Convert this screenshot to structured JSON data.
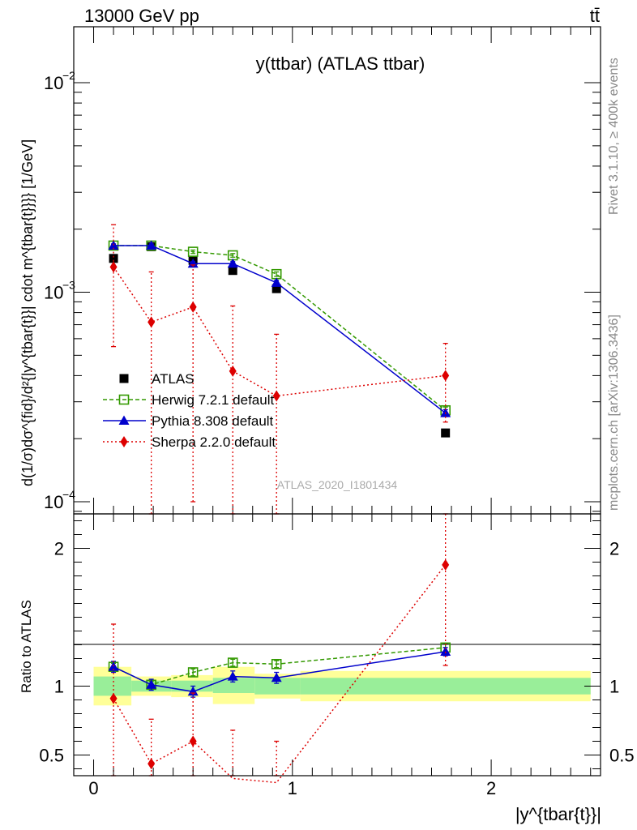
{
  "header": {
    "left": "13000 GeV pp",
    "right": "tt̄"
  },
  "side_labels": {
    "rivet": "Rivet 3.1.10, ≥ 400k events",
    "mcplots": "mcplots.cern.ch [arXiv:1306.3436]"
  },
  "chart_data": [
    {
      "type": "scatter",
      "title": "y(ttbar) (ATLAS ttbar)",
      "watermark": "ATLAS_2020_I1801434",
      "xlabel": "|y^{tbar{t}}|",
      "ylabel": "d(1/σ)dσ^{fid}/d²{|y^{tbar{t}}| cdot m^{tbar{t}}}} [1/GeV]",
      "yscale": "log",
      "xlim": [
        -0.1,
        2.55
      ],
      "ylim": [
        8.75e-05,
        0.0185
      ],
      "yticks": [
        {
          "value": 0.0001,
          "label": "10",
          "exp": "−4"
        },
        {
          "value": 0.001,
          "label": "10",
          "exp": "−3"
        },
        {
          "value": 0.01,
          "label": "10",
          "exp": "−2"
        }
      ],
      "legend_position": "lower-left",
      "series": [
        {
          "name": "ATLAS",
          "color": "#000000",
          "marker": "square",
          "x": [
            0.1,
            0.29,
            0.5,
            0.7,
            0.92,
            1.77
          ],
          "y": [
            0.00145,
            0.00165,
            0.00142,
            0.00127,
            0.00104,
            0.000213
          ]
        },
        {
          "name": "Herwig 7.2.1 default",
          "color": "#339900",
          "marker": "open-square",
          "line": "dashed",
          "x": [
            0.1,
            0.29,
            0.5,
            0.7,
            0.92,
            1.77
          ],
          "y": [
            0.00167,
            0.00167,
            0.00156,
            0.0015,
            0.00122,
            0.000273
          ],
          "err": [
            3e-05,
            3e-05,
            3e-05,
            3e-05,
            3e-05,
            1e-05
          ]
        },
        {
          "name": "Pythia 8.308 default",
          "color": "#0000cc",
          "marker": "triangle",
          "line": "solid",
          "x": [
            0.1,
            0.29,
            0.5,
            0.7,
            0.92,
            1.77
          ],
          "y": [
            0.00167,
            0.00167,
            0.00137,
            0.00137,
            0.00111,
            0.000265
          ],
          "err": [
            3e-05,
            3e-05,
            3e-05,
            3e-05,
            3e-05,
            1e-05
          ]
        },
        {
          "name": "Sherpa 2.2.0 default",
          "color": "#dd0000",
          "marker": "diamond",
          "line": "dotted",
          "x": [
            0.1,
            0.29,
            0.5,
            0.7,
            0.92,
            1.77
          ],
          "y": [
            0.00132,
            0.00072,
            0.00085,
            0.00042,
            0.00032,
            0.0004
          ],
          "ylo": [
            0.00055,
            2e-05,
            0.0001,
            2e-05,
            2e-05,
            0.00024
          ],
          "yhi": [
            0.0021,
            0.00125,
            0.00135,
            0.00086,
            0.00063,
            0.00057
          ]
        }
      ]
    },
    {
      "type": "scatter",
      "ylabel": "Ratio to ATLAS",
      "xlabel": "|y^{tbar{t}}|",
      "xlim": [
        -0.1,
        2.55
      ],
      "ylim": [
        0.35,
        2.25
      ],
      "xticks": [
        0,
        1,
        2
      ],
      "yticks": [
        0.5,
        1,
        2
      ],
      "bands": [
        {
          "x0": 0.0,
          "x1": 0.19,
          "stat_lo": 0.93,
          "stat_hi": 1.07,
          "tot_lo": 0.86,
          "tot_hi": 1.14
        },
        {
          "x0": 0.19,
          "x1": 0.39,
          "stat_lo": 0.96,
          "stat_hi": 1.04,
          "tot_lo": 0.93,
          "tot_hi": 1.07
        },
        {
          "x0": 0.39,
          "x1": 0.6,
          "stat_lo": 0.96,
          "stat_hi": 1.04,
          "tot_lo": 0.92,
          "tot_hi": 1.08
        },
        {
          "x0": 0.6,
          "x1": 0.81,
          "stat_lo": 0.95,
          "stat_hi": 1.06,
          "tot_lo": 0.87,
          "tot_hi": 1.14
        },
        {
          "x0": 0.81,
          "x1": 1.04,
          "stat_lo": 0.94,
          "stat_hi": 1.06,
          "tot_lo": 0.91,
          "tot_hi": 1.09
        },
        {
          "x0": 1.04,
          "x1": 2.5,
          "stat_lo": 0.94,
          "stat_hi": 1.06,
          "tot_lo": 0.89,
          "tot_hi": 1.11
        }
      ],
      "series": [
        {
          "name": "Herwig 7.2.1 default",
          "color": "#339900",
          "marker": "open-square",
          "line": "dashed",
          "x": [
            0.1,
            0.29,
            0.5,
            0.7,
            0.92,
            1.77
          ],
          "y": [
            1.14,
            1.01,
            1.1,
            1.17,
            1.16,
            1.28
          ],
          "err": [
            0.025,
            0.025,
            0.025,
            0.025,
            0.025,
            0.03
          ]
        },
        {
          "name": "Pythia 8.308 default",
          "color": "#0000cc",
          "marker": "triangle",
          "line": "solid",
          "x": [
            0.1,
            0.29,
            0.5,
            0.7,
            0.92,
            1.77
          ],
          "y": [
            1.14,
            1.01,
            0.96,
            1.07,
            1.06,
            1.25
          ],
          "err": [
            0.04,
            0.04,
            0.04,
            0.04,
            0.04,
            0.03
          ]
        },
        {
          "name": "Sherpa 2.2.0 default",
          "color": "#dd0000",
          "marker": "diamond",
          "line": "dotted",
          "x": [
            0.1,
            0.29,
            0.5,
            0.7,
            0.92,
            1.77
          ],
          "y": [
            0.91,
            0.437,
            0.6,
            0.33,
            0.3,
            1.88
          ],
          "ylo": [
            0.3,
            0.01,
            0.07,
            0.01,
            0.01,
            1.15
          ],
          "yhi": [
            1.45,
            0.76,
            0.95,
            0.68,
            0.6,
            2.7
          ]
        }
      ]
    }
  ]
}
